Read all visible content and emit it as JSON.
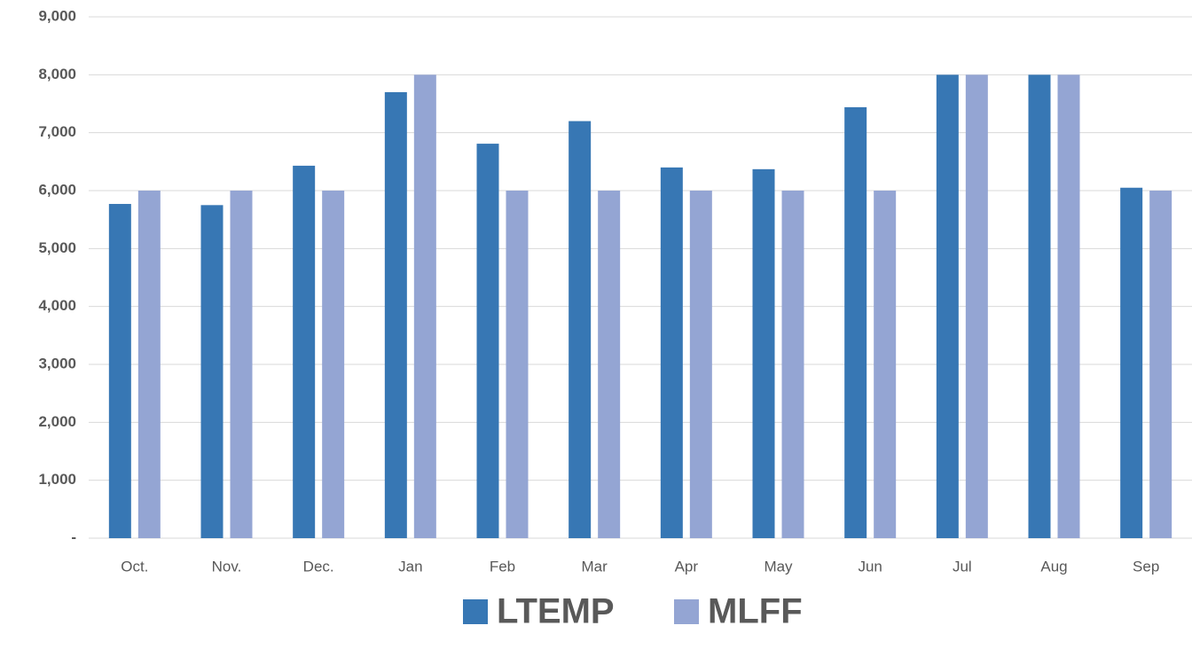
{
  "chart_data": {
    "type": "bar",
    "categories": [
      "Oct.",
      "Nov.",
      "Dec.",
      "Jan",
      "Feb",
      "Mar",
      "Apr",
      "May",
      "Jun",
      "Jul",
      "Aug",
      "Sep"
    ],
    "series": [
      {
        "name": "LTEMP",
        "color": "#3777b4",
        "values": [
          5770,
          5750,
          6430,
          7700,
          6810,
          7200,
          6400,
          6370,
          7440,
          8000,
          8000,
          6050
        ]
      },
      {
        "name": "MLFF",
        "color": "#94a5d3",
        "values": [
          6000,
          6000,
          6000,
          8000,
          6000,
          6000,
          6000,
          6000,
          6000,
          8000,
          8000,
          6000
        ]
      }
    ],
    "ylim": [
      0,
      9000
    ],
    "yticks": [
      {
        "value": 0,
        "label": "-"
      },
      {
        "value": 1000,
        "label": "1,000"
      },
      {
        "value": 2000,
        "label": "2,000"
      },
      {
        "value": 3000,
        "label": "3,000"
      },
      {
        "value": 4000,
        "label": "4,000"
      },
      {
        "value": 5000,
        "label": "5,000"
      },
      {
        "value": 6000,
        "label": "6,000"
      },
      {
        "value": 7000,
        "label": "7,000"
      },
      {
        "value": 8000,
        "label": "8,000"
      },
      {
        "value": 9000,
        "label": "9,000"
      }
    ],
    "grid": true,
    "legend": "bottom"
  }
}
